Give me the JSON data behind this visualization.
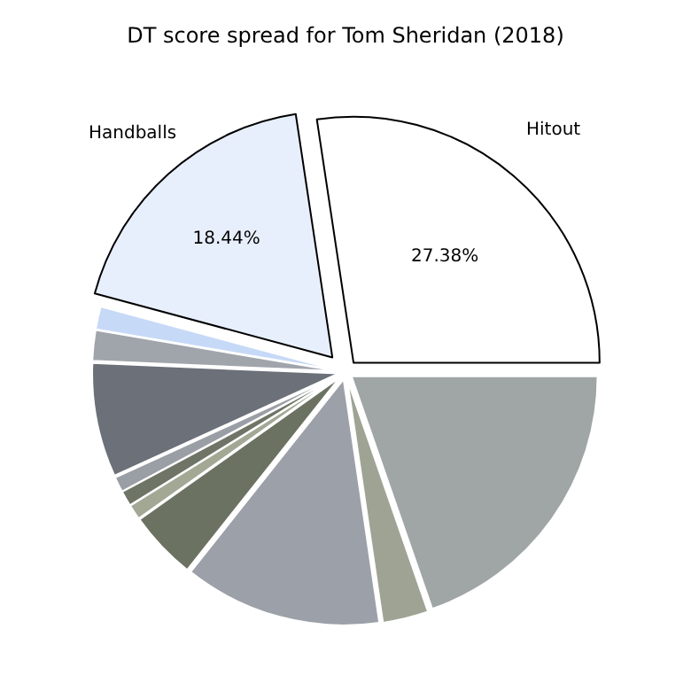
{
  "chart_data": {
    "type": "pie",
    "title": "DT score spread for Tom Sheridan (2018)",
    "categories": [
      "Hitout",
      "Handballs",
      null,
      null,
      null,
      null,
      null,
      null,
      null,
      null,
      null,
      null
    ],
    "values": [
      27.38,
      18.44,
      1.5,
      2,
      7.5,
      1,
      1,
      1,
      4.5,
      13,
      3,
      19.68
    ],
    "colors": [
      "#ffffff",
      "#e8effc",
      "#c6d9f7",
      "#a0a4ab",
      "#6b7079",
      "#9a9ea5",
      "#6e7566",
      "#a3a895",
      "#6c7262",
      "#9ca0a8",
      "#9fa394",
      "#a0a5a5"
    ],
    "value_labels": [
      "27.38%",
      "18.44%",
      null,
      null,
      null,
      null,
      null,
      null,
      null,
      null,
      null,
      null
    ]
  }
}
